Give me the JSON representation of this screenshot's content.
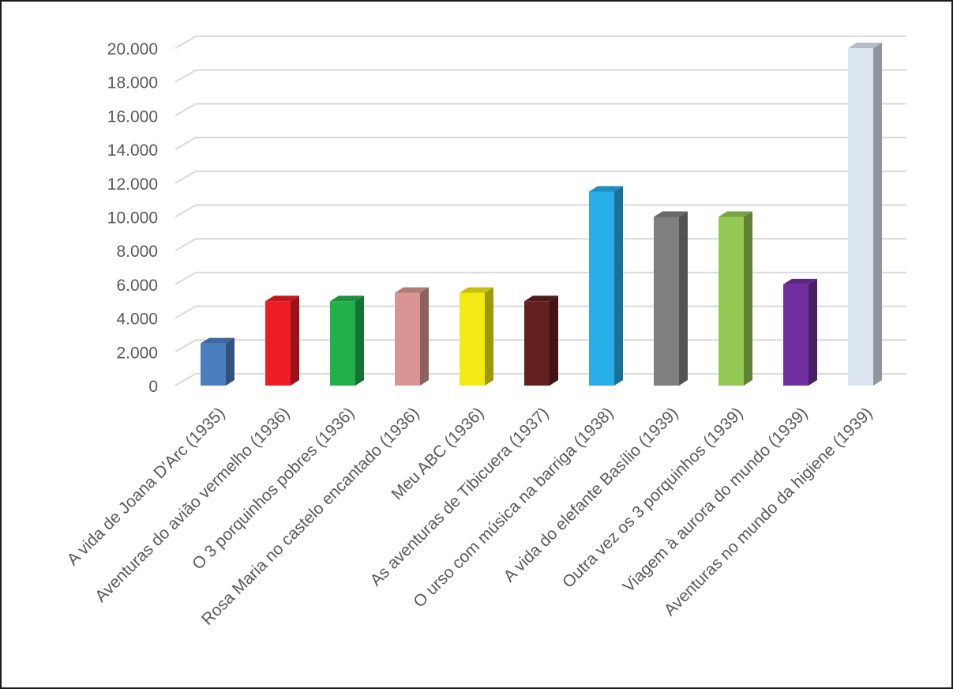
{
  "chart_data": {
    "type": "bar",
    "style": "3d-column",
    "title": "",
    "xlabel": "",
    "ylabel": "",
    "ylim": [
      0,
      20000
    ],
    "grid": true,
    "legend": "none",
    "y_ticks": [
      0,
      2000,
      4000,
      6000,
      8000,
      10000,
      12000,
      14000,
      16000,
      18000,
      20000
    ],
    "y_tick_labels": [
      "0",
      "2.000",
      "4.000",
      "6.000",
      "8.000",
      "10.000",
      "12.000",
      "14.000",
      "16.000",
      "18.000",
      "20.000"
    ],
    "categories": [
      "A vida de Joana D'Arc (1935)",
      "Aventuras do avião vermelho (1936)",
      "O 3 porquinhos pobres (1936)",
      "Rosa Maria no castelo encantado (1936)",
      "Meu ABC (1936)",
      "As aventuras de Tibicuera (1937)",
      "O urso com música na barriga (1938)",
      "A vida do elefante Basílio (1939)",
      "Outra vez os 3 porquinhos (1939)",
      "Viagem à aurora do mundo (1939)",
      "Aventuras no mundo da higiene (1939)"
    ],
    "values": [
      2500,
      5000,
      5000,
      5500,
      5500,
      5000,
      11500,
      10000,
      10000,
      6000,
      20000
    ],
    "colors": [
      "#4a7ebf",
      "#ee1c24",
      "#21b04b",
      "#d99594",
      "#f2ea12",
      "#62201e",
      "#27aee6",
      "#7f7f7f",
      "#92c853",
      "#7030a0",
      "#dce6f2"
    ]
  }
}
